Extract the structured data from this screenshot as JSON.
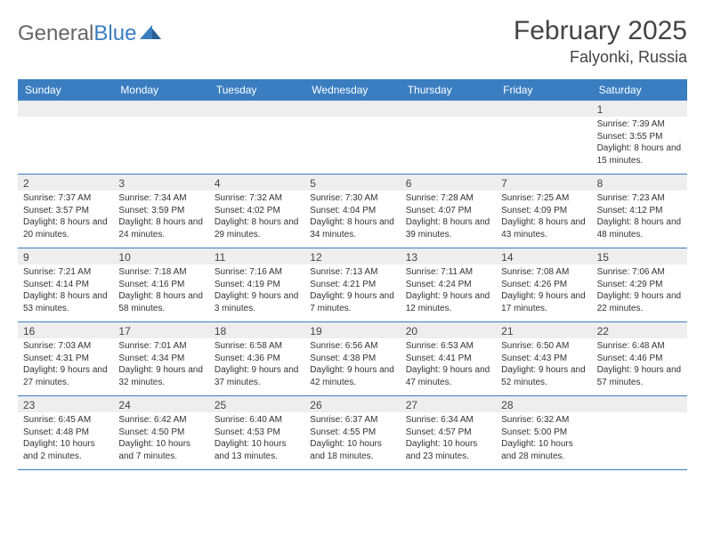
{
  "brand": {
    "part1": "General",
    "part2": "Blue"
  },
  "title": "February 2025",
  "location": "Falyonki, Russia",
  "colors": {
    "header_bg": "#3a7ec1",
    "header_text": "#ffffff",
    "daynum_bg": "#eeeeee",
    "border": "#3a7ec1",
    "text": "#333333"
  },
  "day_names": [
    "Sunday",
    "Monday",
    "Tuesday",
    "Wednesday",
    "Thursday",
    "Friday",
    "Saturday"
  ],
  "weeks": [
    [
      {
        "empty": true
      },
      {
        "empty": true
      },
      {
        "empty": true
      },
      {
        "empty": true
      },
      {
        "empty": true
      },
      {
        "empty": true
      },
      {
        "day": "1",
        "sunrise": "Sunrise: 7:39 AM",
        "sunset": "Sunset: 3:55 PM",
        "daylight": "Daylight: 8 hours and 15 minutes."
      }
    ],
    [
      {
        "day": "2",
        "sunrise": "Sunrise: 7:37 AM",
        "sunset": "Sunset: 3:57 PM",
        "daylight": "Daylight: 8 hours and 20 minutes."
      },
      {
        "day": "3",
        "sunrise": "Sunrise: 7:34 AM",
        "sunset": "Sunset: 3:59 PM",
        "daylight": "Daylight: 8 hours and 24 minutes."
      },
      {
        "day": "4",
        "sunrise": "Sunrise: 7:32 AM",
        "sunset": "Sunset: 4:02 PM",
        "daylight": "Daylight: 8 hours and 29 minutes."
      },
      {
        "day": "5",
        "sunrise": "Sunrise: 7:30 AM",
        "sunset": "Sunset: 4:04 PM",
        "daylight": "Daylight: 8 hours and 34 minutes."
      },
      {
        "day": "6",
        "sunrise": "Sunrise: 7:28 AM",
        "sunset": "Sunset: 4:07 PM",
        "daylight": "Daylight: 8 hours and 39 minutes."
      },
      {
        "day": "7",
        "sunrise": "Sunrise: 7:25 AM",
        "sunset": "Sunset: 4:09 PM",
        "daylight": "Daylight: 8 hours and 43 minutes."
      },
      {
        "day": "8",
        "sunrise": "Sunrise: 7:23 AM",
        "sunset": "Sunset: 4:12 PM",
        "daylight": "Daylight: 8 hours and 48 minutes."
      }
    ],
    [
      {
        "day": "9",
        "sunrise": "Sunrise: 7:21 AM",
        "sunset": "Sunset: 4:14 PM",
        "daylight": "Daylight: 8 hours and 53 minutes."
      },
      {
        "day": "10",
        "sunrise": "Sunrise: 7:18 AM",
        "sunset": "Sunset: 4:16 PM",
        "daylight": "Daylight: 8 hours and 58 minutes."
      },
      {
        "day": "11",
        "sunrise": "Sunrise: 7:16 AM",
        "sunset": "Sunset: 4:19 PM",
        "daylight": "Daylight: 9 hours and 3 minutes."
      },
      {
        "day": "12",
        "sunrise": "Sunrise: 7:13 AM",
        "sunset": "Sunset: 4:21 PM",
        "daylight": "Daylight: 9 hours and 7 minutes."
      },
      {
        "day": "13",
        "sunrise": "Sunrise: 7:11 AM",
        "sunset": "Sunset: 4:24 PM",
        "daylight": "Daylight: 9 hours and 12 minutes."
      },
      {
        "day": "14",
        "sunrise": "Sunrise: 7:08 AM",
        "sunset": "Sunset: 4:26 PM",
        "daylight": "Daylight: 9 hours and 17 minutes."
      },
      {
        "day": "15",
        "sunrise": "Sunrise: 7:06 AM",
        "sunset": "Sunset: 4:29 PM",
        "daylight": "Daylight: 9 hours and 22 minutes."
      }
    ],
    [
      {
        "day": "16",
        "sunrise": "Sunrise: 7:03 AM",
        "sunset": "Sunset: 4:31 PM",
        "daylight": "Daylight: 9 hours and 27 minutes."
      },
      {
        "day": "17",
        "sunrise": "Sunrise: 7:01 AM",
        "sunset": "Sunset: 4:34 PM",
        "daylight": "Daylight: 9 hours and 32 minutes."
      },
      {
        "day": "18",
        "sunrise": "Sunrise: 6:58 AM",
        "sunset": "Sunset: 4:36 PM",
        "daylight": "Daylight: 9 hours and 37 minutes."
      },
      {
        "day": "19",
        "sunrise": "Sunrise: 6:56 AM",
        "sunset": "Sunset: 4:38 PM",
        "daylight": "Daylight: 9 hours and 42 minutes."
      },
      {
        "day": "20",
        "sunrise": "Sunrise: 6:53 AM",
        "sunset": "Sunset: 4:41 PM",
        "daylight": "Daylight: 9 hours and 47 minutes."
      },
      {
        "day": "21",
        "sunrise": "Sunrise: 6:50 AM",
        "sunset": "Sunset: 4:43 PM",
        "daylight": "Daylight: 9 hours and 52 minutes."
      },
      {
        "day": "22",
        "sunrise": "Sunrise: 6:48 AM",
        "sunset": "Sunset: 4:46 PM",
        "daylight": "Daylight: 9 hours and 57 minutes."
      }
    ],
    [
      {
        "day": "23",
        "sunrise": "Sunrise: 6:45 AM",
        "sunset": "Sunset: 4:48 PM",
        "daylight": "Daylight: 10 hours and 2 minutes."
      },
      {
        "day": "24",
        "sunrise": "Sunrise: 6:42 AM",
        "sunset": "Sunset: 4:50 PM",
        "daylight": "Daylight: 10 hours and 7 minutes."
      },
      {
        "day": "25",
        "sunrise": "Sunrise: 6:40 AM",
        "sunset": "Sunset: 4:53 PM",
        "daylight": "Daylight: 10 hours and 13 minutes."
      },
      {
        "day": "26",
        "sunrise": "Sunrise: 6:37 AM",
        "sunset": "Sunset: 4:55 PM",
        "daylight": "Daylight: 10 hours and 18 minutes."
      },
      {
        "day": "27",
        "sunrise": "Sunrise: 6:34 AM",
        "sunset": "Sunset: 4:57 PM",
        "daylight": "Daylight: 10 hours and 23 minutes."
      },
      {
        "day": "28",
        "sunrise": "Sunrise: 6:32 AM",
        "sunset": "Sunset: 5:00 PM",
        "daylight": "Daylight: 10 hours and 28 minutes."
      },
      {
        "empty": true
      }
    ]
  ]
}
